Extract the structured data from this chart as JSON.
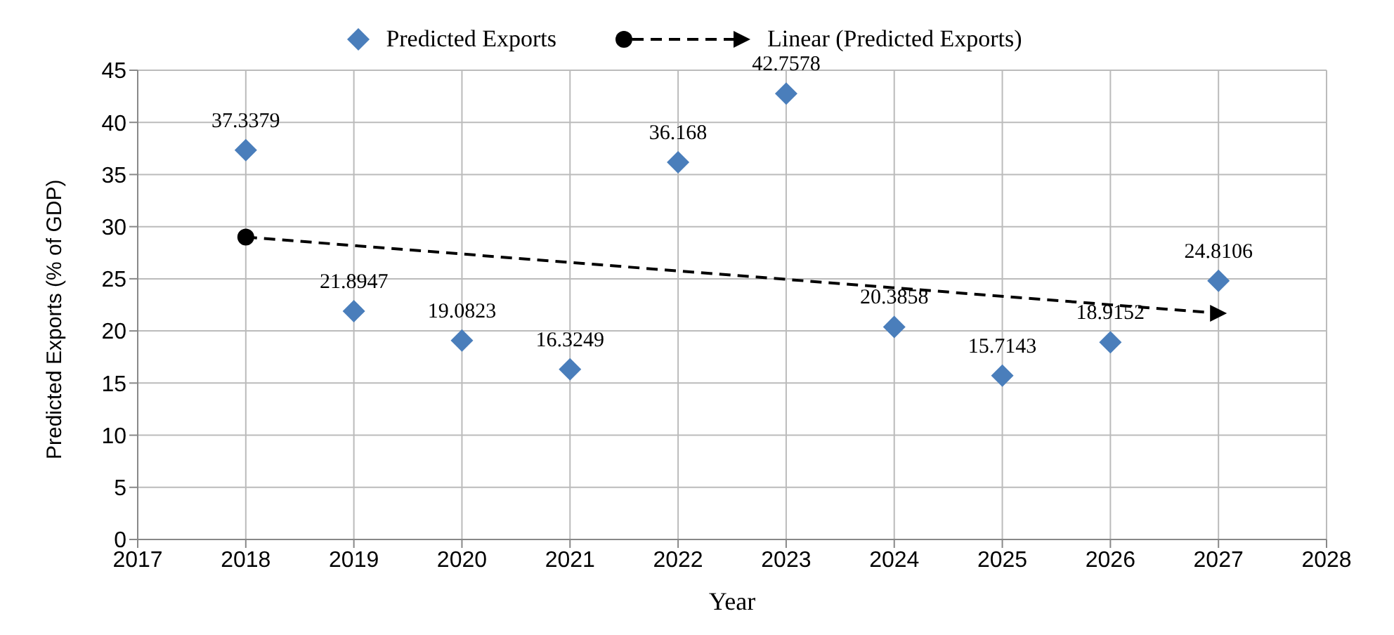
{
  "chart_data": {
    "type": "scatter",
    "xlabel": "Year",
    "ylabel": "Predicted Exports (% of GDP)",
    "x": [
      2018,
      2019,
      2020,
      2021,
      2022,
      2023,
      2024,
      2025,
      2026,
      2027
    ],
    "series": [
      {
        "name": "Predicted Exports",
        "color": "#4a7ebb",
        "marker": "diamond",
        "values": [
          37.3379,
          21.8947,
          19.0823,
          16.3249,
          36.168,
          42.7578,
          20.3858,
          15.7143,
          18.9152,
          24.8106
        ],
        "value_labels": [
          "37.3379",
          "21.8947",
          "19.0823",
          "16.3249",
          "36.168",
          "42.7578",
          "20.3858",
          "15.7143",
          "18.9152",
          "24.8106"
        ]
      },
      {
        "name": "Linear (Predicted Exports)",
        "type": "line",
        "color": "#000000",
        "line_style": "dashed",
        "marker": "circle",
        "x": [
          2018,
          2027
        ],
        "values": [
          29.0,
          21.7
        ]
      }
    ],
    "xlim": [
      2017,
      2028
    ],
    "xticks": [
      2017,
      2018,
      2019,
      2020,
      2021,
      2022,
      2023,
      2024,
      2025,
      2026,
      2027,
      2028
    ],
    "ylim": [
      0,
      45
    ],
    "yticks": [
      0,
      5,
      10,
      15,
      20,
      25,
      30,
      35,
      40,
      45
    ],
    "grid": true,
    "legend": "top"
  }
}
